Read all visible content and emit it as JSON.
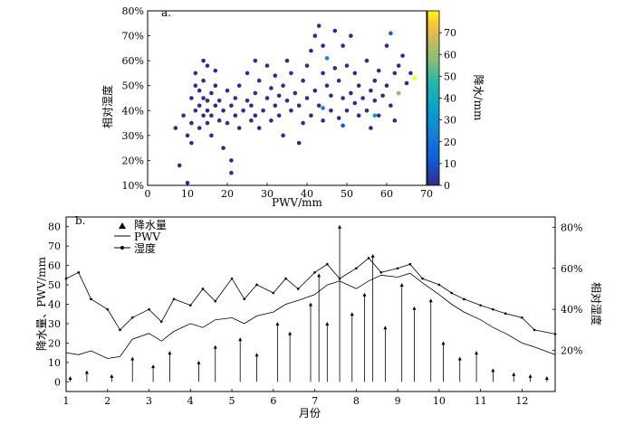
{
  "chart_data": [
    {
      "panel": "a.",
      "type": "scatter",
      "xlabel": "PWV/mm",
      "ylabel": "相对湿度",
      "xlim": [
        0,
        70
      ],
      "ylim": [
        10,
        80
      ],
      "xticks": [
        "0",
        "10",
        "20",
        "30",
        "40",
        "50",
        "60",
        "70"
      ],
      "yticks": [
        "10%",
        "20%",
        "30%",
        "40%",
        "50%",
        "60%",
        "70%",
        "80%"
      ],
      "colorbar": {
        "label": "降水/mm",
        "range": [
          0,
          80
        ],
        "ticks": [
          "0",
          "10",
          "20",
          "30",
          "40",
          "50",
          "60",
          "70"
        ],
        "colors": [
          "#352a87",
          "#0f5cdd",
          "#1481d6",
          "#06a4ca",
          "#2eb7a4",
          "#87bf77",
          "#d1bb59",
          "#fec832",
          "#f9fb0e"
        ]
      },
      "points": [
        [
          7,
          33,
          0
        ],
        [
          8,
          18,
          0
        ],
        [
          9,
          38,
          0
        ],
        [
          10,
          11,
          0
        ],
        [
          10,
          30,
          0
        ],
        [
          11,
          27,
          0
        ],
        [
          11,
          35,
          0
        ],
        [
          11,
          45,
          0
        ],
        [
          12,
          40,
          0
        ],
        [
          12,
          50,
          0
        ],
        [
          12,
          55,
          0
        ],
        [
          13,
          33,
          0
        ],
        [
          13,
          42,
          0
        ],
        [
          13,
          48,
          0
        ],
        [
          14,
          38,
          0
        ],
        [
          14,
          45,
          0
        ],
        [
          14,
          52,
          0
        ],
        [
          14,
          60,
          0
        ],
        [
          15,
          35,
          0
        ],
        [
          15,
          40,
          0
        ],
        [
          15,
          44,
          0
        ],
        [
          15,
          58,
          0
        ],
        [
          16,
          30,
          0
        ],
        [
          16,
          38,
          0
        ],
        [
          16,
          47,
          0
        ],
        [
          17,
          42,
          0
        ],
        [
          17,
          50,
          0
        ],
        [
          17,
          56,
          0
        ],
        [
          18,
          36,
          0
        ],
        [
          18,
          44,
          0
        ],
        [
          19,
          25,
          0
        ],
        [
          19,
          40,
          0
        ],
        [
          20,
          35,
          0
        ],
        [
          20,
          48,
          0
        ],
        [
          21,
          15,
          0
        ],
        [
          21,
          20,
          0
        ],
        [
          21,
          42,
          0
        ],
        [
          22,
          38,
          0
        ],
        [
          22,
          45,
          0
        ],
        [
          23,
          33,
          0
        ],
        [
          23,
          50,
          0
        ],
        [
          24,
          40,
          0
        ],
        [
          25,
          44,
          0
        ],
        [
          25,
          55,
          0
        ],
        [
          26,
          36,
          0
        ],
        [
          26,
          42,
          0
        ],
        [
          27,
          38,
          0
        ],
        [
          27,
          47,
          0
        ],
        [
          27,
          60,
          0
        ],
        [
          28,
          33,
          0
        ],
        [
          28,
          52,
          0
        ],
        [
          29,
          40,
          0
        ],
        [
          30,
          45,
          0
        ],
        [
          30,
          58,
          0
        ],
        [
          31,
          36,
          0
        ],
        [
          31,
          49,
          0
        ],
        [
          32,
          42,
          0
        ],
        [
          32,
          54,
          0
        ],
        [
          33,
          38,
          0
        ],
        [
          33,
          46,
          0
        ],
        [
          34,
          30,
          0
        ],
        [
          34,
          50,
          0
        ],
        [
          35,
          44,
          0
        ],
        [
          35,
          60,
          0
        ],
        [
          36,
          40,
          0
        ],
        [
          36,
          55,
          0
        ],
        [
          37,
          47,
          0
        ],
        [
          38,
          27,
          0
        ],
        [
          38,
          42,
          0
        ],
        [
          39,
          35,
          0
        ],
        [
          39,
          52,
          0
        ],
        [
          40,
          45,
          0
        ],
        [
          40,
          58,
          0
        ],
        [
          41,
          38,
          0
        ],
        [
          41,
          64,
          2
        ],
        [
          42,
          48,
          0
        ],
        [
          42,
          70,
          0
        ],
        [
          43,
          42,
          0
        ],
        [
          43,
          74,
          0
        ],
        [
          44,
          36,
          0
        ],
        [
          44,
          55,
          0
        ],
        [
          44,
          66,
          0
        ],
        [
          45,
          50,
          0
        ],
        [
          45,
          61,
          20
        ],
        [
          46,
          40,
          0
        ],
        [
          46,
          46,
          0
        ],
        [
          47,
          57,
          0
        ],
        [
          47,
          72,
          0
        ],
        [
          48,
          37,
          0
        ],
        [
          48,
          52,
          0
        ],
        [
          49,
          45,
          0
        ],
        [
          49,
          66,
          0
        ],
        [
          50,
          40,
          0
        ],
        [
          50,
          58,
          0
        ],
        [
          51,
          47,
          0
        ],
        [
          51,
          70,
          0
        ],
        [
          52,
          43,
          0
        ],
        [
          52,
          55,
          0
        ],
        [
          53,
          38,
          0
        ],
        [
          53,
          50,
          0
        ],
        [
          54,
          45,
          0
        ],
        [
          55,
          40,
          0
        ],
        [
          55,
          60,
          0
        ],
        [
          56,
          48,
          0
        ],
        [
          56,
          33,
          0
        ],
        [
          57,
          44,
          0
        ],
        [
          57,
          52,
          0
        ],
        [
          58,
          38,
          0
        ],
        [
          58,
          56,
          0
        ],
        [
          59,
          46,
          0
        ],
        [
          60,
          50,
          0
        ],
        [
          60,
          66,
          0
        ],
        [
          61,
          42,
          0
        ],
        [
          61,
          71,
          10
        ],
        [
          62,
          55,
          0
        ],
        [
          62,
          36,
          0
        ],
        [
          63,
          47,
          45
        ],
        [
          63,
          58,
          0
        ],
        [
          64,
          62,
          0
        ],
        [
          65,
          51,
          0
        ],
        [
          66,
          55,
          0
        ],
        [
          67,
          53,
          75
        ],
        [
          57,
          38,
          25
        ],
        [
          44,
          41,
          18
        ],
        [
          49,
          34,
          8
        ]
      ]
    },
    {
      "panel": "b.",
      "type": "line",
      "xlabel": "月份",
      "ylabel_left": "降水量、PWV/mm",
      "ylabel_right": "相对湿度",
      "xlim": [
        1,
        12.8
      ],
      "ylim_left": [
        -5,
        85
      ],
      "ylim_right": [
        0,
        85
      ],
      "xticks": [
        "1",
        "2",
        "3",
        "4",
        "5",
        "6",
        "7",
        "8",
        "9",
        "10",
        "11",
        "12"
      ],
      "yticks_left": [
        "0",
        "10",
        "20",
        "30",
        "40",
        "50",
        "60",
        "70",
        "80"
      ],
      "yticks_right": [
        "20%",
        "40%",
        "60%",
        "80%"
      ],
      "legend": [
        {
          "symbol": "triangle",
          "label": "降水量"
        },
        {
          "symbol": "line",
          "label": "PWV"
        },
        {
          "symbol": "line-dot",
          "label": "湿度"
        }
      ],
      "series": [
        {
          "name": "PWV",
          "values_by_month": [
            [
              1,
              15
            ],
            [
              1.3,
              14
            ],
            [
              1.6,
              16
            ],
            [
              2,
              12
            ],
            [
              2.3,
              13
            ],
            [
              2.6,
              22
            ],
            [
              3,
              25
            ],
            [
              3.3,
              21
            ],
            [
              3.6,
              26
            ],
            [
              4,
              30
            ],
            [
              4.3,
              28
            ],
            [
              4.6,
              32
            ],
            [
              5,
              33
            ],
            [
              5.3,
              30
            ],
            [
              5.6,
              34
            ],
            [
              6,
              36
            ],
            [
              6.3,
              40
            ],
            [
              6.6,
              42
            ],
            [
              7,
              45
            ],
            [
              7.3,
              50
            ],
            [
              7.6,
              52
            ],
            [
              8,
              48
            ],
            [
              8.3,
              52
            ],
            [
              8.6,
              55
            ],
            [
              9,
              54
            ],
            [
              9.3,
              56
            ],
            [
              9.6,
              51
            ],
            [
              10,
              45
            ],
            [
              10.3,
              40
            ],
            [
              10.6,
              36
            ],
            [
              11,
              32
            ],
            [
              11.3,
              28
            ],
            [
              11.6,
              25
            ],
            [
              12,
              20
            ],
            [
              12.3,
              18
            ],
            [
              12.8,
              14
            ]
          ]
        },
        {
          "name": "湿度",
          "values_by_month": [
            [
              1,
              55
            ],
            [
              1.3,
              58
            ],
            [
              1.6,
              45
            ],
            [
              2,
              40
            ],
            [
              2.3,
              30
            ],
            [
              2.6,
              36
            ],
            [
              3,
              40
            ],
            [
              3.3,
              34
            ],
            [
              3.6,
              45
            ],
            [
              4,
              42
            ],
            [
              4.3,
              50
            ],
            [
              4.6,
              44
            ],
            [
              5,
              55
            ],
            [
              5.3,
              45
            ],
            [
              5.6,
              52
            ],
            [
              6,
              48
            ],
            [
              6.3,
              55
            ],
            [
              6.6,
              50
            ],
            [
              7,
              58
            ],
            [
              7.3,
              62
            ],
            [
              7.6,
              55
            ],
            [
              8,
              60
            ],
            [
              8.3,
              65
            ],
            [
              8.6,
              58
            ],
            [
              9,
              60
            ],
            [
              9.3,
              62
            ],
            [
              9.6,
              55
            ],
            [
              10,
              52
            ],
            [
              10.3,
              48
            ],
            [
              10.6,
              45
            ],
            [
              11,
              42
            ],
            [
              11.3,
              40
            ],
            [
              11.6,
              38
            ],
            [
              12,
              36
            ],
            [
              12.3,
              30
            ],
            [
              12.8,
              28
            ]
          ]
        },
        {
          "name": "降水量",
          "values_by_month": [
            [
              1.1,
              2
            ],
            [
              1.5,
              5
            ],
            [
              2.1,
              3
            ],
            [
              2.6,
              12
            ],
            [
              3.1,
              8
            ],
            [
              3.5,
              15
            ],
            [
              4.2,
              10
            ],
            [
              4.6,
              18
            ],
            [
              5.2,
              22
            ],
            [
              5.6,
              14
            ],
            [
              6.1,
              30
            ],
            [
              6.4,
              25
            ],
            [
              6.9,
              40
            ],
            [
              7.1,
              55
            ],
            [
              7.3,
              30
            ],
            [
              7.6,
              80
            ],
            [
              7.9,
              35
            ],
            [
              8.2,
              45
            ],
            [
              8.4,
              65
            ],
            [
              8.7,
              28
            ],
            [
              9.1,
              50
            ],
            [
              9.4,
              38
            ],
            [
              9.8,
              42
            ],
            [
              10.1,
              20
            ],
            [
              10.5,
              12
            ],
            [
              10.9,
              15
            ],
            [
              11.3,
              6
            ],
            [
              11.8,
              4
            ],
            [
              12.2,
              3
            ],
            [
              12.6,
              2
            ]
          ]
        }
      ]
    }
  ]
}
